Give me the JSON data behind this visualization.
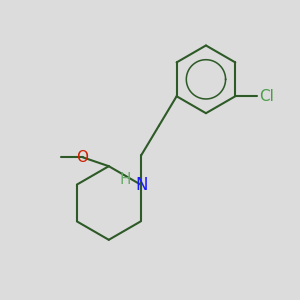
{
  "background_color": "#dcdcdc",
  "bond_color": "#2d5a27",
  "bond_width": 1.5,
  "atom_colors": {
    "N": "#1a1aff",
    "O": "#cc2200",
    "Cl": "#4a9e4a",
    "H": "#6aaa6a",
    "C": "#000000"
  },
  "font_size": 11
}
